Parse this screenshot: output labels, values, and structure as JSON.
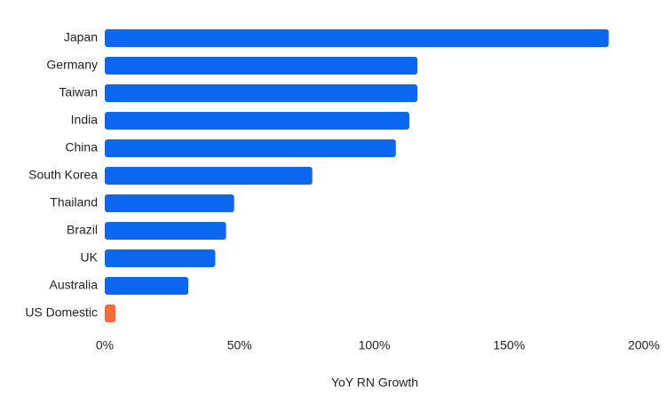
{
  "chart_data": {
    "type": "bar",
    "orientation": "horizontal",
    "categories": [
      "Japan",
      "Germany",
      "Taiwan",
      "India",
      "China",
      "South Korea",
      "Thailand",
      "Brazil",
      "UK",
      "Australia",
      "US Domestic"
    ],
    "values": [
      187,
      116,
      116,
      113,
      108,
      77,
      48,
      45,
      41,
      31,
      4
    ],
    "colors": [
      "#0b66f0",
      "#0b66f0",
      "#0b66f0",
      "#0b66f0",
      "#0b66f0",
      "#0b66f0",
      "#0b66f0",
      "#0b66f0",
      "#0b66f0",
      "#0b66f0",
      "#f26b38"
    ],
    "xlabel": "YoY RN Growth",
    "xlim": [
      0,
      200
    ],
    "xticks": [
      {
        "value": 0,
        "label": "0%"
      },
      {
        "value": 50,
        "label": "50%"
      },
      {
        "value": 100,
        "label": "100%"
      },
      {
        "value": 150,
        "label": "150%"
      },
      {
        "value": 200,
        "label": "200%"
      }
    ],
    "grid": false
  }
}
